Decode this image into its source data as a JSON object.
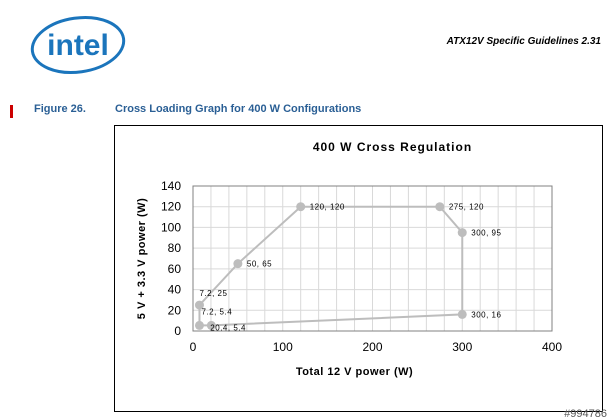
{
  "header": {
    "logo_text": "intel",
    "document_title": "ATX12V Specific Guidelines 2.31"
  },
  "figure": {
    "number": "Figure 26.",
    "caption": "Cross Loading Graph for 400 W Configurations"
  },
  "watermark": "#994786",
  "colors": {
    "logo_blue": "#1b75bc",
    "caption_blue": "#2a5f95",
    "accent_red": "#cc0000",
    "series_gray": "#bdbdbd",
    "grid_gray": "#d9d9d9"
  },
  "chart_data": {
    "type": "scatter",
    "title": "400 W Cross Regulation",
    "xlabel": "Total 12 V power (W)",
    "ylabel": "5 V + 3.3 V power (W)",
    "xlim": [
      0,
      400
    ],
    "ylim": [
      0,
      140
    ],
    "x_ticks": [
      0,
      100,
      200,
      300,
      400
    ],
    "y_ticks": [
      0,
      20,
      40,
      60,
      80,
      100,
      120,
      140
    ],
    "grid": true,
    "legend": "none",
    "connected": true,
    "closed": true,
    "series": [
      {
        "points": [
          {
            "x": 120,
            "y": 120,
            "label": "120, 120"
          },
          {
            "x": 275,
            "y": 120,
            "label": "275, 120"
          },
          {
            "x": 300,
            "y": 95,
            "label": "300, 95"
          },
          {
            "x": 300,
            "y": 16,
            "label": "300, 16"
          },
          {
            "x": 20.4,
            "y": 5.4,
            "label": "20.4, 5.4"
          },
          {
            "x": 7.2,
            "y": 5.4,
            "label": "7.2, 5.4"
          },
          {
            "x": 7.2,
            "y": 25,
            "label": "7.2, 25"
          },
          {
            "x": 50,
            "y": 65,
            "label": "50, 65"
          }
        ]
      }
    ]
  }
}
